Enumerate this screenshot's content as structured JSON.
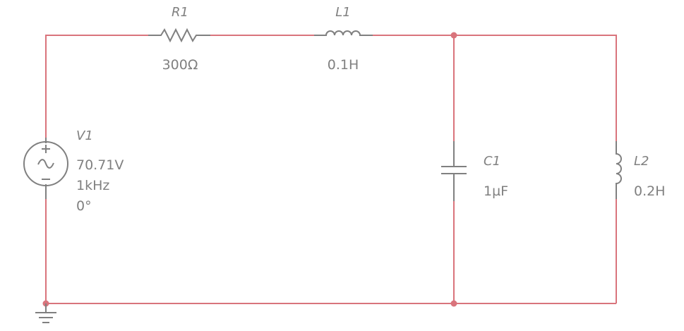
{
  "components": {
    "R1": {
      "ref": "R1",
      "value": "300Ω"
    },
    "L1": {
      "ref": "L1",
      "value": "0.1H"
    },
    "C1": {
      "ref": "C1",
      "value": "1µF"
    },
    "L2": {
      "ref": "L2",
      "value": "0.2H"
    },
    "V1": {
      "ref": "V1",
      "amplitude": "70.71V",
      "frequency": "1kHz",
      "phase": "0°"
    }
  },
  "colors": {
    "wire": "#d9747c",
    "component": "#808080",
    "background": "#ffffff"
  },
  "icons": {
    "source": "ac-voltage-source-icon",
    "ground": "ground-icon",
    "resistor": "resistor-icon",
    "inductor": "inductor-icon",
    "capacitor": "capacitor-icon"
  }
}
